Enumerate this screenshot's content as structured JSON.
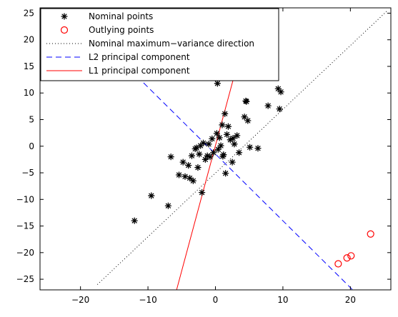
{
  "chart_data": {
    "type": "scatter",
    "title": "",
    "xlabel": "",
    "ylabel": "",
    "xlim": [
      -26,
      26
    ],
    "ylim": [
      -27,
      26
    ],
    "xticks": [
      -20,
      -10,
      0,
      10,
      20
    ],
    "yticks": [
      -25,
      -20,
      -15,
      -10,
      -5,
      0,
      5,
      10,
      15,
      20,
      25
    ],
    "grid": false,
    "legend_position": "top-left",
    "series": [
      {
        "name": "Nominal points",
        "kind": "scatter",
        "marker": "asterisk",
        "color": "#000000",
        "points": [
          [
            -12,
            -14
          ],
          [
            -9.5,
            -9.3
          ],
          [
            -7,
            -11.2
          ],
          [
            -6.6,
            -2
          ],
          [
            -5.4,
            -5.4
          ],
          [
            -4.8,
            -3
          ],
          [
            -4.5,
            -5.7
          ],
          [
            -4,
            -3.6
          ],
          [
            -3.8,
            -6
          ],
          [
            -3.5,
            -1.8
          ],
          [
            -3.3,
            -6.5
          ],
          [
            -3,
            -0.5
          ],
          [
            -2.8,
            -0.3
          ],
          [
            -2.6,
            -4
          ],
          [
            -2.4,
            -1.5
          ],
          [
            -2.2,
            0.1
          ],
          [
            -2,
            -8.7
          ],
          [
            -1.8,
            0.6
          ],
          [
            -1.5,
            -2.5
          ],
          [
            -1,
            0.4
          ],
          [
            -0.8,
            -2
          ],
          [
            -0.5,
            1.4
          ],
          [
            -0.3,
            -1.2
          ],
          [
            0.2,
            2.4
          ],
          [
            0.4,
            -0.6
          ],
          [
            0.6,
            1.6
          ],
          [
            0.8,
            0.1
          ],
          [
            1,
            4
          ],
          [
            1.2,
            -1.6
          ],
          [
            1.4,
            6.1
          ],
          [
            1.5,
            -5.1
          ],
          [
            1.7,
            2.2
          ],
          [
            1.9,
            3.7
          ],
          [
            2.2,
            1.2
          ],
          [
            2.5,
            -3
          ],
          [
            2.6,
            1.5
          ],
          [
            2.8,
            0.4
          ],
          [
            3.2,
            2
          ],
          [
            3.5,
            -1.2
          ],
          [
            4.5,
            8.5
          ],
          [
            4.6,
            8.4
          ],
          [
            5.1,
            -0.2
          ],
          [
            6.3,
            -0.4
          ],
          [
            7.8,
            7.6
          ],
          [
            9.3,
            10.8
          ],
          [
            9.5,
            7
          ],
          [
            9.7,
            10.2
          ],
          [
            0.3,
            11.8
          ],
          [
            4.3,
            5.5
          ],
          [
            4.8,
            4.8
          ],
          [
            -1.2,
            -1.8
          ],
          [
            1.1,
            -1.9
          ]
        ]
      },
      {
        "name": "Outlying points",
        "kind": "scatter",
        "marker": "circle",
        "color": "#ff0000",
        "points": [
          [
            18.2,
            -22.1
          ],
          [
            19.5,
            -21
          ],
          [
            20.1,
            -20.6
          ],
          [
            23,
            -16.5
          ]
        ]
      },
      {
        "name": "Nominal maximum−variance direction",
        "kind": "line",
        "style": "dotted",
        "color": "#000000",
        "points": [
          [
            -17.5,
            -26
          ],
          [
            25.5,
            25.5
          ]
        ]
      },
      {
        "name": "L2 principal component",
        "kind": "line",
        "style": "dashed",
        "color": "#0000ff",
        "points": [
          [
            -17.5,
            20.5
          ],
          [
            20.5,
            -27.2
          ]
        ]
      },
      {
        "name": "L1 principal component",
        "kind": "line",
        "style": "solid",
        "color": "#ff0000",
        "points": [
          [
            -5.8,
            -27.2
          ],
          [
            5.6,
            26.5
          ]
        ]
      }
    ]
  }
}
